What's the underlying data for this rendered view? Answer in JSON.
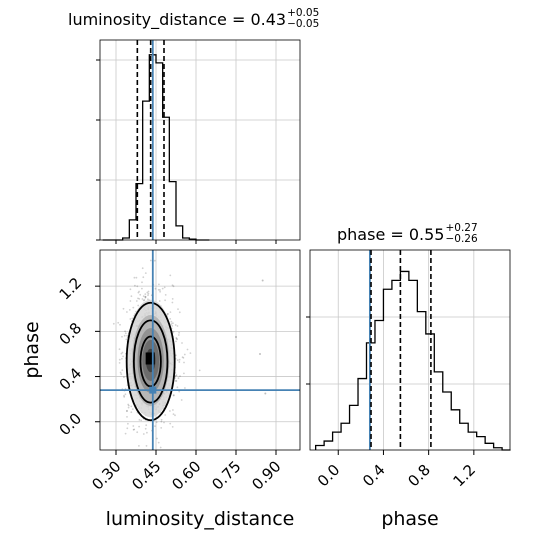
{
  "chart_data": {
    "type": "corner",
    "parameters": [
      "luminosity_distance",
      "phase"
    ],
    "truth_color": "#4682b4",
    "panels": [
      {
        "panel": "luminosity_distance-marginal",
        "type": "histogram",
        "title": {
          "label": "luminosity_distance",
          "median": "0.43",
          "upper": "+0.05",
          "lower": "−0.05"
        },
        "median": 0.43,
        "q16": 0.38,
        "q84": 0.48,
        "truth": 0.438,
        "bin_edges": [
          0.25,
          0.275,
          0.3,
          0.325,
          0.35,
          0.375,
          0.4,
          0.425,
          0.45,
          0.475,
          0.5,
          0.525,
          0.55,
          0.575,
          0.6,
          0.625,
          0.65
        ],
        "counts": [
          0,
          0,
          0,
          1,
          10,
          28,
          69,
          92,
          88,
          61,
          29,
          7,
          1,
          0.4,
          0,
          0
        ],
        "xlim": [
          0.24,
          0.99
        ],
        "xticks": [
          "0.30",
          "0.45",
          "0.60",
          "0.75",
          "0.90"
        ],
        "xtick_values": [
          0.3,
          0.45,
          0.6,
          0.75,
          0.9
        ],
        "grid": true
      },
      {
        "panel": "phase-vs-luminosity_distance",
        "type": "2d-density",
        "x": "luminosity_distance",
        "y": "phase",
        "xlim": [
          0.24,
          0.99
        ],
        "ylim": [
          -0.25,
          1.52
        ],
        "xlabel": "luminosity_distance",
        "ylabel": "phase",
        "xticks": [
          "0.30",
          "0.45",
          "0.60",
          "0.75",
          "0.90"
        ],
        "xtick_values": [
          0.3,
          0.45,
          0.6,
          0.75,
          0.9
        ],
        "yticks": [
          "0.0",
          "0.4",
          "0.8",
          "1.2"
        ],
        "ytick_values": [
          0.0,
          0.4,
          0.8,
          1.2
        ],
        "center": [
          0.43,
          0.56
        ],
        "sigma": [
          0.045,
          0.26
        ],
        "truth": [
          0.438,
          0.28
        ],
        "grid": true
      },
      {
        "panel": "phase-marginal",
        "type": "histogram",
        "title": {
          "label": "phase",
          "median": "0.55",
          "upper": "+0.27",
          "lower": "−0.26"
        },
        "median": 0.55,
        "q16": 0.29,
        "q84": 0.82,
        "truth": 0.28,
        "bin_edges": [
          -0.2,
          -0.125,
          -0.05,
          0.025,
          0.1,
          0.175,
          0.25,
          0.325,
          0.4,
          0.475,
          0.55,
          0.625,
          0.7,
          0.775,
          0.85,
          0.925,
          1.0,
          1.075,
          1.15,
          1.225,
          1.3,
          1.375,
          1.45,
          1.525
        ],
        "counts": [
          2,
          4,
          8,
          12,
          20,
          32,
          48,
          58,
          72,
          76,
          80,
          76,
          62,
          52,
          35,
          26,
          18,
          12,
          8,
          6,
          3,
          1,
          0
        ],
        "xlim": [
          -0.25,
          1.52
        ],
        "xlabel": "phase",
        "xticks": [
          "0.0",
          "0.4",
          "0.8",
          "1.2"
        ],
        "xtick_values": [
          0.0,
          0.4,
          0.8,
          1.2
        ],
        "grid": true
      }
    ]
  }
}
